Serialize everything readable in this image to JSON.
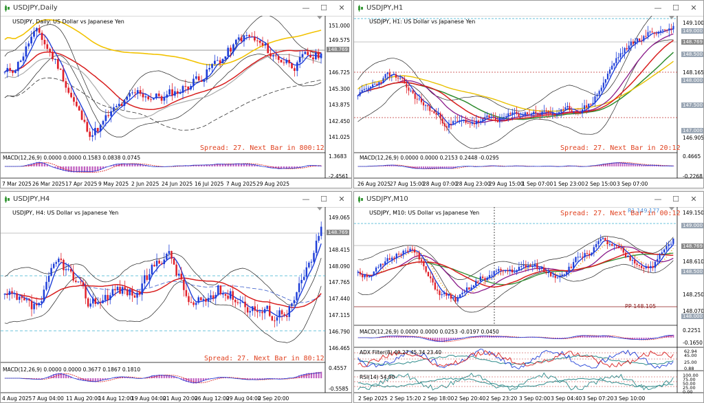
{
  "windows": [
    {
      "title": "USDJPY,Daily",
      "symbol_label": "USDJPY, Daily:  US Dollar vs Japanese Yen",
      "prices": [
        "151.000",
        "149.575",
        "148.769",
        "146.725",
        "145.300",
        "143.875",
        "142.450",
        "141.025"
      ],
      "current_price": "148.769",
      "spread": "Spread: 27. Next Bar in 800:12",
      "macd_label": "MACD(12,26,9) 0.0000 0.0000 0.1583 0.0838 0.0745",
      "macd_scale": [
        "1.3683",
        "-2.4561"
      ],
      "dates": [
        "7 Mar 2025",
        "26 Mar 2025",
        "17 Apr 2025",
        "9 May 2025",
        "2 Jun 2025",
        "24 Jun 2025",
        "16 Jul 2025",
        "7 Aug 2025",
        "29 Aug 2025"
      ]
    },
    {
      "title": "USDJPY,H1",
      "symbol_label": "USDJPY, H1:  US Dollar vs Japanese Yen",
      "prices": [
        "149.100",
        "149.000",
        "148.769",
        "148.500",
        "148.165",
        "148.000",
        "147.500",
        "147.000",
        "146.905"
      ],
      "current_price": "148.769",
      "spread": "Spread: 27. Next Bar in 20:12",
      "macd_label": "MACD(12,26,9) 0.0000 0.0000 0.2153 0.2448 -0.0295",
      "macd_scale": [
        "0.4665",
        "-0.2268"
      ],
      "dates": [
        "26 Aug 2025",
        "27 Aug 15:00",
        "28 Aug 07:00",
        "28 Aug 23:00",
        "29 Aug 15:00",
        "1 Sep 07:00",
        "1 Sep 23:00",
        "2 Sep 15:00",
        "3 Sep 07:00"
      ]
    },
    {
      "title": "USDJPY,H4",
      "symbol_label": "USDJPY, H4:  US Dollar vs Japanese Yen",
      "prices": [
        "149.065",
        "148.769",
        "148.415",
        "148.090",
        "147.765",
        "147.440",
        "147.115",
        "146.790",
        "146.465"
      ],
      "current_price": "148.769",
      "spread": "Spread: 27. Next Bar in 80:12",
      "macd_label": "MACD(12,26,9) 0.0000 0.0000 0.3677 0.1867 0.1810",
      "macd_scale": [
        "0.4557",
        "-0.5585"
      ],
      "dates": [
        "4 Aug 2025",
        "7 Aug 04:00",
        "11 Aug 20:00",
        "14 Aug 12:00",
        "19 Aug 04:00",
        "21 Aug 20:00",
        "26 Aug 12:00",
        "29 Aug 04:00",
        "2 Sep 20:00"
      ]
    },
    {
      "title": "USDJPY,M10",
      "symbol_label": "USDJPY, M10:  US Dollar vs Japanese Yen",
      "prices": [
        "149.150",
        "149.000",
        "148.769",
        "148.610",
        "148.500",
        "148.250",
        "148.070",
        "148.000"
      ],
      "current_price": "148.769",
      "pp_label": "PP 148.105",
      "r1_label": "R1 149.177",
      "spread": "Spread: 27. Next Bar in 00:12",
      "macd_label": "MACD(12,26,9) 0.0000 0.0000 0.0253 -0.0197 0.0450",
      "macd_scale": [
        "0.2251",
        "-0.1650"
      ],
      "adx_label": "ADX Filter(8) 40.27 45.34 23.40",
      "adx_scale": [
        "62.94",
        "45.00",
        "25.00",
        "0.88"
      ],
      "rsi_label": "RSI(14) 54.90",
      "rsi_scale": [
        "100.00",
        "75.00",
        "50.00",
        "25.00",
        "0.00"
      ],
      "dates": [
        "2 Sep 2025",
        "2 Sep 15:20",
        "2 Sep 18:00",
        "2 Sep 20:40",
        "2 Sep 23:20",
        "3 Sep 02:00",
        "3 Sep 04:40",
        "3 Sep 07:20",
        "3 Sep 10:00"
      ]
    }
  ],
  "colors": {
    "bull": "#1f3fd8",
    "bear": "#e0202a",
    "accent": "#e0401e"
  }
}
